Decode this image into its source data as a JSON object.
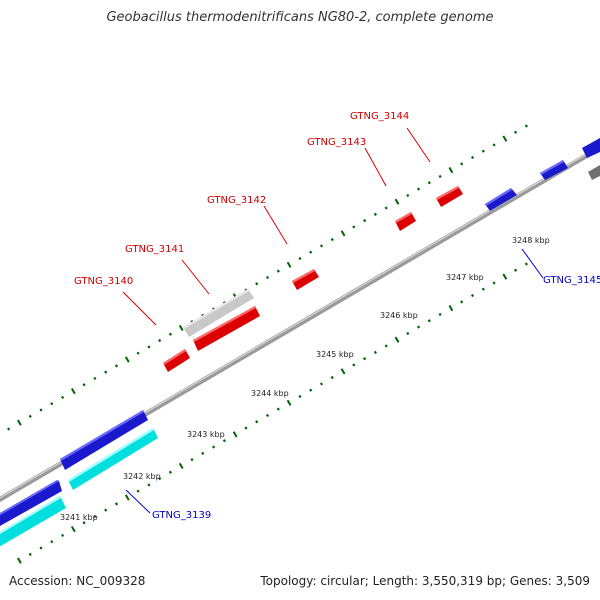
{
  "title": "Geobacillus thermodenitrificans NG80-2, complete genome",
  "footer": {
    "accession": "Accession: NC_009328",
    "summary": "Topology: circular; Length: 3,550,319 bp; Genes: 3,509"
  },
  "colors": {
    "forward_gene": "#ff0000",
    "reverse_gene": "#0000ff",
    "rna": "#00ffff",
    "pseudo": "#c0c0c0",
    "backbone": "#808080",
    "ticks": "#006400",
    "label_forward": "#cc0000",
    "label_reverse": "#0000cc"
  },
  "kbp_labels": [
    "3241 kbp",
    "3242 kbp",
    "3243 kbp",
    "3244 kbp",
    "3245 kbp",
    "3246 kbp",
    "3247 kbp",
    "3248 kbp"
  ],
  "gene_labels": {
    "g3139": "GTNG_3139",
    "g3140": "GTNG_3140",
    "g3141": "GTNG_3141",
    "g3142": "GTNG_3142",
    "g3143": "GTNG_3143",
    "g3144": "GTNG_3144",
    "g3145": "GTNG_3145"
  }
}
